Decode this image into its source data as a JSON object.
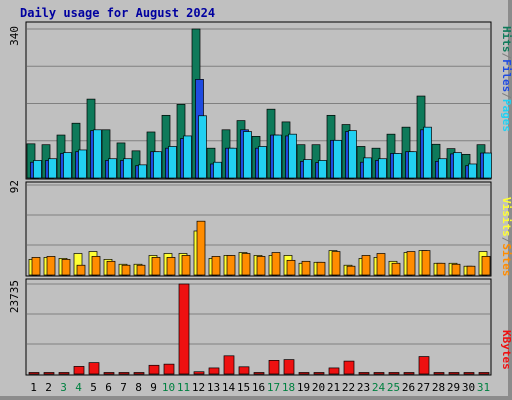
{
  "chart_data": [
    {
      "type": "bar",
      "title": "Daily usage for August 2024",
      "ymax_label": "340",
      "ylim": [
        0,
        340
      ],
      "categories": [
        "1",
        "2",
        "3",
        "4",
        "5",
        "6",
        "7",
        "8",
        "9",
        "10",
        "11",
        "12",
        "13",
        "14",
        "15",
        "16",
        "17",
        "18",
        "19",
        "20",
        "21",
        "22",
        "23",
        "24",
        "25",
        "26",
        "27",
        "28",
        "29",
        "30",
        "31"
      ],
      "series": [
        {
          "name": "Hits",
          "color": "#0e7a5a",
          "values": [
            78,
            76,
            98,
            125,
            180,
            110,
            80,
            62,
            105,
            143,
            168,
            340,
            68,
            110,
            131,
            95,
            157,
            128,
            76,
            76,
            143,
            122,
            72,
            68,
            100,
            116,
            187,
            77,
            67,
            54,
            76
          ]
        },
        {
          "name": "Files",
          "color": "#1f4be0",
          "values": [
            36,
            40,
            56,
            60,
            108,
            40,
            40,
            28,
            60,
            68,
            90,
            225,
            32,
            68,
            110,
            68,
            98,
            96,
            38,
            35,
            86,
            106,
            36,
            40,
            56,
            60,
            110,
            38,
            55,
            28,
            57
          ]
        },
        {
          "name": "Pages",
          "color": "#22d0f2",
          "values": [
            40,
            44,
            58,
            64,
            110,
            44,
            44,
            30,
            60,
            72,
            96,
            142,
            36,
            68,
            106,
            72,
            98,
            100,
            42,
            40,
            86,
            108,
            46,
            44,
            56,
            60,
            116,
            44,
            58,
            32,
            57
          ]
        }
      ],
      "legend": [
        "Pages",
        "/",
        "Files",
        "/",
        "Hits"
      ],
      "legend_colors": [
        "#22d0f2",
        "#808080",
        "#1f4be0",
        "#808080",
        "#0e7a5a"
      ]
    },
    {
      "type": "bar",
      "ymax_label": "92",
      "ylim": [
        0,
        92
      ],
      "series": [
        {
          "name": "Visits",
          "color": "#ffff33",
          "values": [
            16,
            18,
            17,
            22,
            24,
            16,
            11,
            11,
            20,
            22,
            22,
            45,
            17,
            20,
            23,
            20,
            20,
            20,
            12,
            13,
            25,
            10,
            17,
            18,
            14,
            23,
            25,
            12,
            12,
            9,
            24
          ]
        },
        {
          "name": "Sites",
          "color": "#ff8c00",
          "values": [
            18,
            19,
            16,
            10,
            19,
            14,
            10,
            10,
            18,
            18,
            20,
            55,
            19,
            20,
            22,
            19,
            23,
            15,
            14,
            13,
            24,
            9,
            20,
            22,
            12,
            24,
            25,
            12,
            11,
            9,
            19
          ]
        }
      ],
      "legend": [
        "Sites",
        "/",
        "Visits"
      ],
      "legend_colors": [
        "#ff8c00",
        "#808080",
        "#ffff33"
      ]
    },
    {
      "type": "bar",
      "ymax_label": "23735",
      "ylim": [
        0,
        23735
      ],
      "series": [
        {
          "name": "KBytes",
          "color": "#ee1111",
          "values": [
            400,
            400,
            400,
            2000,
            3000,
            400,
            400,
            400,
            2300,
            2600,
            23735,
            600,
            1600,
            4800,
            1900,
            400,
            3600,
            3800,
            400,
            400,
            1600,
            3400,
            400,
            400,
            400,
            400,
            4600,
            400,
            400,
            400,
            400
          ]
        }
      ],
      "legend": [
        "KBytes"
      ],
      "legend_colors": [
        "#ee1111"
      ]
    }
  ],
  "x_labels": [
    "1",
    "2",
    "3",
    "4",
    "5",
    "6",
    "7",
    "8",
    "9",
    "10",
    "11",
    "12",
    "13",
    "14",
    "15",
    "16",
    "17",
    "18",
    "19",
    "20",
    "21",
    "22",
    "23",
    "24",
    "25",
    "26",
    "27",
    "28",
    "29",
    "30",
    "31"
  ],
  "weekend_days": [
    3,
    4,
    10,
    11,
    17,
    18,
    24,
    25,
    31
  ],
  "weekday_color": "#000000",
  "weekend_color": "#008040"
}
